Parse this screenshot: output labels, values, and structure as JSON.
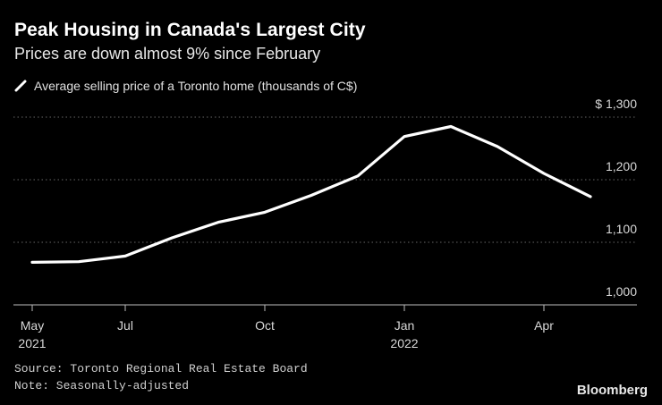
{
  "title": "Peak Housing in Canada's Largest City",
  "subtitle": "Prices are down almost 9% since February",
  "source": "Source: Toronto Regional Real Estate Board",
  "note": "Note: Seasonally-adjusted",
  "brand": "Bloomberg",
  "colors": {
    "background": "#000000",
    "line": "#ffffff",
    "grid": "#666666"
  },
  "chart_data": {
    "type": "line",
    "title": "Peak Housing in Canada's Largest City",
    "subtitle": "Prices are down almost 9% since February",
    "legend": "Average selling price of a Toronto home (thousands of C$)",
    "legend_position": "top-left",
    "y_axis_position": "right",
    "ylim": [
      1000,
      1300
    ],
    "y_ticks": [
      {
        "value": 1300,
        "label": "$ 1,300"
      },
      {
        "value": 1200,
        "label": "1,200"
      },
      {
        "value": 1100,
        "label": "1,100"
      },
      {
        "value": 1000,
        "label": "1,000"
      }
    ],
    "x_ticks": [
      {
        "index": 0,
        "label": "May",
        "sublabel": "2021"
      },
      {
        "index": 2,
        "label": "Jul",
        "sublabel": ""
      },
      {
        "index": 5,
        "label": "Oct",
        "sublabel": ""
      },
      {
        "index": 8,
        "label": "Jan",
        "sublabel": "2022"
      },
      {
        "index": 11,
        "label": "Apr",
        "sublabel": ""
      }
    ],
    "x": [
      "2021-05",
      "2021-06",
      "2021-07",
      "2021-08",
      "2021-09",
      "2021-10",
      "2021-11",
      "2021-12",
      "2022-01",
      "2022-02",
      "2022-03",
      "2022-04",
      "2022-05"
    ],
    "series": [
      {
        "name": "Average selling price of a Toronto home (thousands of C$)",
        "values": [
          1068,
          1069,
          1078,
          1107,
          1132,
          1148,
          1175,
          1206,
          1269,
          1285,
          1253,
          1210,
          1173
        ]
      }
    ],
    "grid": true
  }
}
